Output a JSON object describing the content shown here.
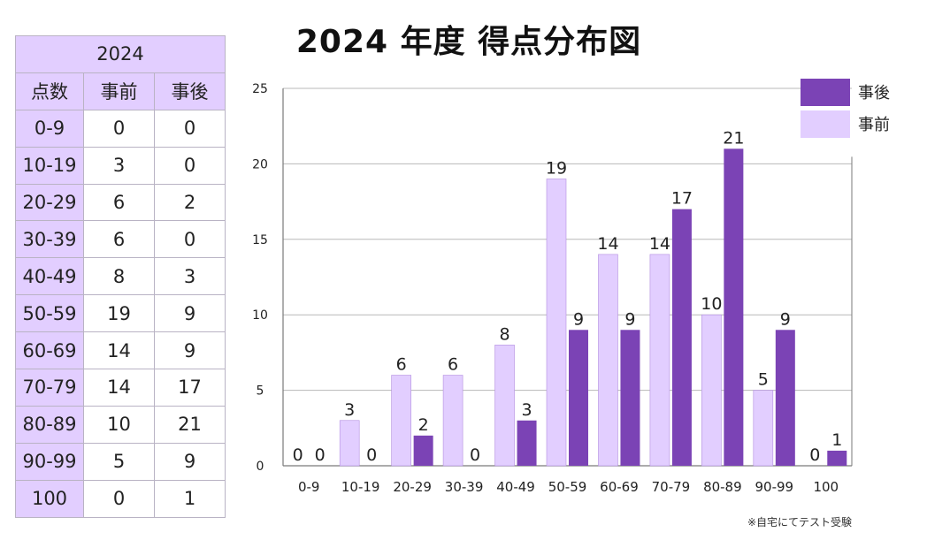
{
  "title": "2024 年度 得点分布図",
  "table": {
    "year": "2024",
    "headers": [
      "点数",
      "事前",
      "事後"
    ],
    "rows": [
      {
        "range": "0-9",
        "before": "0",
        "after": "0"
      },
      {
        "range": "10-19",
        "before": "3",
        "after": "0"
      },
      {
        "range": "20-29",
        "before": "6",
        "after": "2"
      },
      {
        "range": "30-39",
        "before": "6",
        "after": "0"
      },
      {
        "range": "40-49",
        "before": "8",
        "after": "3"
      },
      {
        "range": "50-59",
        "before": "19",
        "after": "9"
      },
      {
        "range": "60-69",
        "before": "14",
        "after": "9"
      },
      {
        "range": "70-79",
        "before": "14",
        "after": "17"
      },
      {
        "range": "80-89",
        "before": "10",
        "after": "21"
      },
      {
        "range": "90-99",
        "before": "5",
        "after": "9"
      },
      {
        "range": "100",
        "before": "0",
        "after": "1"
      }
    ]
  },
  "footnote": "※自宅にてテスト受験",
  "colors": {
    "before": "#e2ceff",
    "after": "#7b43b5",
    "table_header": "#e2ceff",
    "grid": "#b8b8b8",
    "axis": "#7a7a7a"
  },
  "chart_data": {
    "type": "bar",
    "title": "2024 年度 得点分布図",
    "categories": [
      "0-9",
      "10-19",
      "20-29",
      "30-39",
      "40-49",
      "50-59",
      "60-69",
      "70-79",
      "80-89",
      "90-99",
      "100"
    ],
    "series": [
      {
        "name": "事前",
        "values": [
          0,
          3,
          6,
          6,
          8,
          19,
          14,
          14,
          10,
          5,
          0
        ]
      },
      {
        "name": "事後",
        "values": [
          0,
          0,
          2,
          0,
          3,
          9,
          9,
          17,
          21,
          9,
          1
        ]
      }
    ],
    "ylim": [
      0,
      25
    ],
    "yticks": [
      0,
      5,
      10,
      15,
      20,
      25
    ],
    "data_labels": true,
    "grid": true,
    "legend": {
      "position": "top-right",
      "order": [
        "事後",
        "事前"
      ]
    }
  }
}
